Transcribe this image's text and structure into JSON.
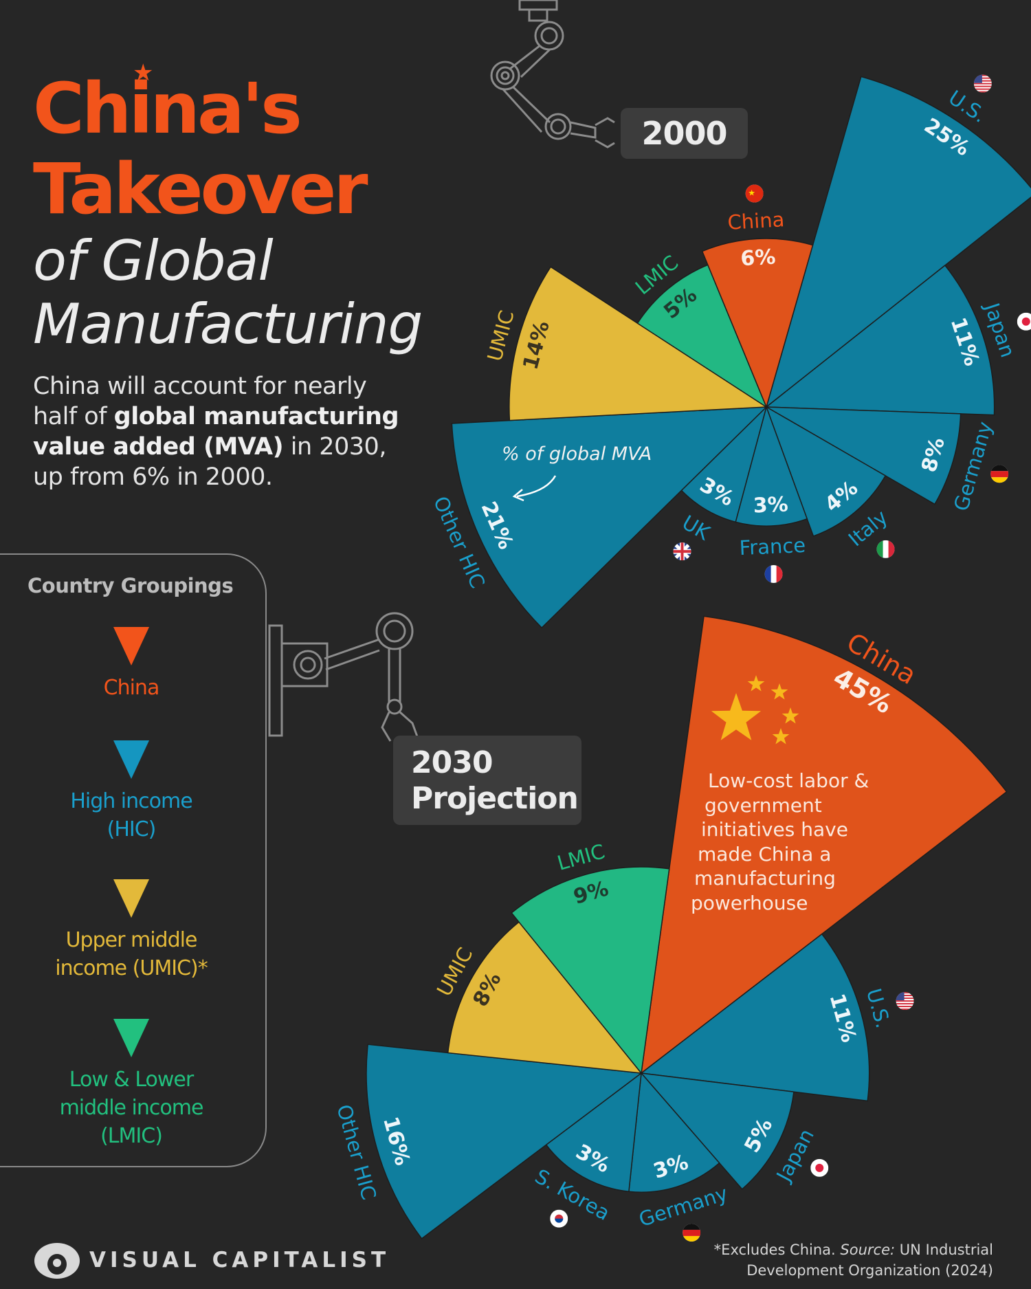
{
  "title": {
    "line1": "China's",
    "line2": "Takeover",
    "line3": "of Global",
    "line4": "Manufacturing"
  },
  "subtitle": {
    "part1": "China will account for nearly half of ",
    "bold1": "global manufacturing value added (MVA)",
    "part2": " in 2030, up from 6% in 2000."
  },
  "legend": {
    "title": "Country Groupings",
    "items": [
      {
        "label": "China",
        "color": "#f2541b"
      },
      {
        "label": "High income (HIC)",
        "color": "#1596c0"
      },
      {
        "label": "Upper middle income (UMIC)*",
        "color": "#e3b93a"
      },
      {
        "label": "Low & Lower middle income (LMIC)",
        "color": "#22c07f"
      }
    ]
  },
  "colors": {
    "background": "#262626",
    "china": "#e0531b",
    "hic": "#0f7e9e",
    "umic": "#e3b93a",
    "lmic": "#22b883",
    "title_accent": "#f2541b"
  },
  "annotations": {
    "mva_note": "% of global MVA",
    "china_note": [
      "Low-cost labor &",
      "government",
      "initiatives have",
      "made China a",
      "manufacturing",
      "powerhouse"
    ]
  },
  "chart_data": [
    {
      "type": "pie",
      "variant": "polar-area",
      "title": "2000",
      "unit": "% of global MVA",
      "segments": [
        {
          "label": "U.S.",
          "value": 25,
          "group": "hic",
          "flag": "us-flag-icon"
        },
        {
          "label": "Japan",
          "value": 11,
          "group": "hic",
          "flag": "japan-flag-icon"
        },
        {
          "label": "Germany",
          "value": 8,
          "group": "hic",
          "flag": "germany-flag-icon"
        },
        {
          "label": "Italy",
          "value": 4,
          "group": "hic",
          "flag": "italy-flag-icon"
        },
        {
          "label": "France",
          "value": 3,
          "group": "hic",
          "flag": "france-flag-icon"
        },
        {
          "label": "UK",
          "value": 3,
          "group": "hic",
          "flag": "uk-flag-icon"
        },
        {
          "label": "Other HIC",
          "value": 21,
          "group": "hic",
          "flag": null
        },
        {
          "label": "UMIC",
          "value": 14,
          "group": "umic",
          "flag": null
        },
        {
          "label": "LMIC",
          "value": 5,
          "group": "lmic",
          "flag": null
        },
        {
          "label": "China",
          "value": 6,
          "group": "china",
          "flag": "china-flag-icon"
        }
      ]
    },
    {
      "type": "pie",
      "variant": "polar-area",
      "title": "2030 Projection",
      "unit": "% of global MVA",
      "segments": [
        {
          "label": "China",
          "value": 45,
          "group": "china",
          "flag": null
        },
        {
          "label": "U.S.",
          "value": 11,
          "group": "hic",
          "flag": "us-flag-icon"
        },
        {
          "label": "Japan",
          "value": 5,
          "group": "hic",
          "flag": "japan-flag-icon"
        },
        {
          "label": "Germany",
          "value": 3,
          "group": "hic",
          "flag": "germany-flag-icon"
        },
        {
          "label": "S. Korea",
          "value": 3,
          "group": "hic",
          "flag": "south-korea-flag-icon"
        },
        {
          "label": "Other HIC",
          "value": 16,
          "group": "hic",
          "flag": null
        },
        {
          "label": "UMIC",
          "value": 8,
          "group": "umic",
          "flag": null
        },
        {
          "label": "LMIC",
          "value": 9,
          "group": "lmic",
          "flag": null
        }
      ]
    }
  ],
  "footer": {
    "brand": "VISUAL CAPITALIST",
    "note": "*Excludes China. ",
    "source_label": "Source:",
    "source": " UN Industrial Development Organization (2024)"
  }
}
